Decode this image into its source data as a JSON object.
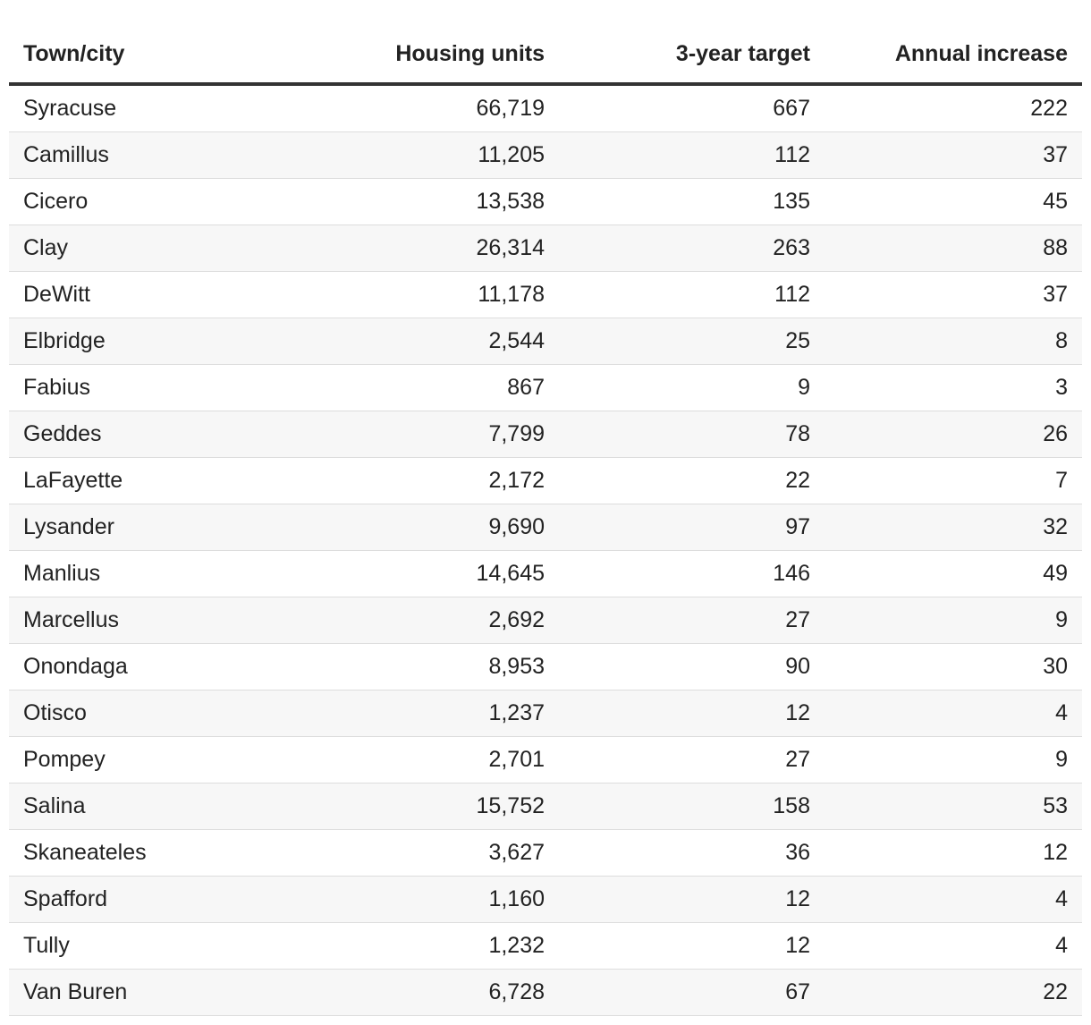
{
  "table": {
    "header": [
      "Town/city",
      "Housing units",
      "3-year target",
      "Annual increase"
    ],
    "rows": [
      [
        "Syracuse",
        "66,719",
        "667",
        "222"
      ],
      [
        "Camillus",
        "11,205",
        "112",
        "37"
      ],
      [
        "Cicero",
        "13,538",
        "135",
        "45"
      ],
      [
        "Clay",
        "26,314",
        "263",
        "88"
      ],
      [
        "DeWitt",
        "11,178",
        "112",
        "37"
      ],
      [
        "Elbridge",
        "2,544",
        "25",
        "8"
      ],
      [
        "Fabius",
        "867",
        "9",
        "3"
      ],
      [
        "Geddes",
        "7,799",
        "78",
        "26"
      ],
      [
        "LaFayette",
        "2,172",
        "22",
        "7"
      ],
      [
        "Lysander",
        "9,690",
        "97",
        "32"
      ],
      [
        "Manlius",
        "14,645",
        "146",
        "49"
      ],
      [
        "Marcellus",
        "2,692",
        "27",
        "9"
      ],
      [
        "Onondaga",
        "8,953",
        "90",
        "30"
      ],
      [
        "Otisco",
        "1,237",
        "12",
        "4"
      ],
      [
        "Pompey",
        "2,701",
        "27",
        "9"
      ],
      [
        "Salina",
        "15,752",
        "158",
        "53"
      ],
      [
        "Skaneateles",
        "3,627",
        "36",
        "12"
      ],
      [
        "Spafford",
        "1,160",
        "12",
        "4"
      ],
      [
        "Tully",
        "1,232",
        "12",
        "4"
      ],
      [
        "Van Buren",
        "6,728",
        "67",
        "22"
      ]
    ]
  }
}
